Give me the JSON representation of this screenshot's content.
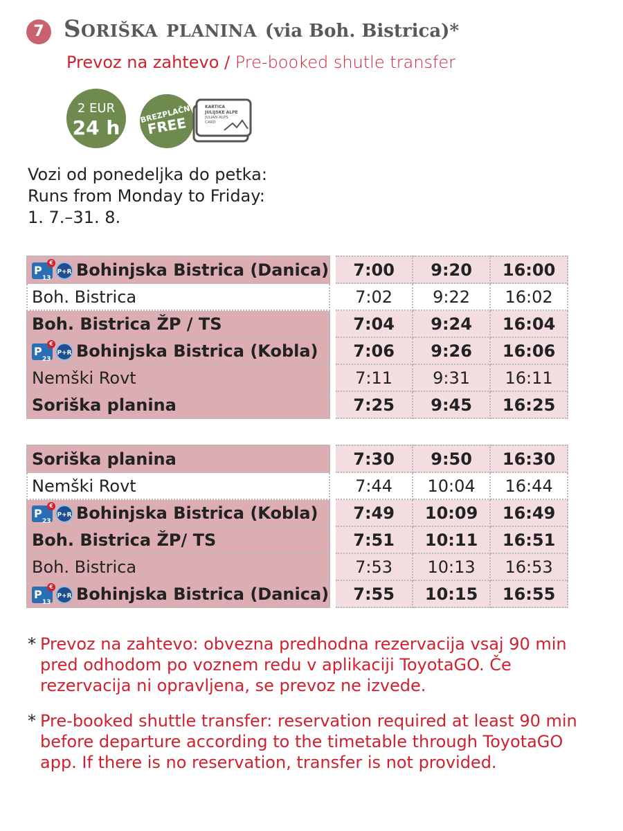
{
  "header": {
    "route_number": "7",
    "title": "Soriška planina",
    "title_via": "(via Boh. Bistrica)*",
    "subtitle_si": "Prevoz na zahtevo /",
    "subtitle_en": "Pre-booked shutle transfer"
  },
  "badges": {
    "price_line1": "2 EUR",
    "price_line2": "24 h",
    "free_line1": "BREZPLAČNO",
    "free_line2": "FREE",
    "card_line1": "KARTICA",
    "card_line2": "JULIJSKE ALPE",
    "card_line3": "JULIAN ALPS",
    "card_line4": "CARD"
  },
  "schedule_info": {
    "line_si": "Vozi od ponedeljka do petka:",
    "line_en": "Runs from Monday to Friday:",
    "dates": "1. 7.–31. 8."
  },
  "table_out": {
    "rows": [
      {
        "stop": "Bohinjska Bistrica (Danica)",
        "times": [
          "7:00",
          "9:20",
          "16:00"
        ],
        "icons": "p13"
      },
      {
        "stop": "Boh. Bistrica",
        "times": [
          "7:02",
          "9:22",
          "16:02"
        ],
        "icons": ""
      },
      {
        "stop": "Boh. Bistrica ŽP / TS",
        "times": [
          "7:04",
          "9:24",
          "16:04"
        ],
        "icons": ""
      },
      {
        "stop": "Bohinjska Bistrica (Kobla)",
        "times": [
          "7:06",
          "9:26",
          "16:06"
        ],
        "icons": "p23"
      },
      {
        "stop": "Nemški Rovt",
        "times": [
          "7:11",
          "9:31",
          "16:11"
        ],
        "icons": ""
      },
      {
        "stop": "Soriška planina",
        "times": [
          "7:25",
          "9:45",
          "16:25"
        ],
        "icons": ""
      }
    ]
  },
  "table_back": {
    "rows": [
      {
        "stop": "Soriška planina",
        "times": [
          "7:30",
          "9:50",
          "16:30"
        ],
        "icons": ""
      },
      {
        "stop": "Nemški Rovt",
        "times": [
          "7:44",
          "10:04",
          "16:44"
        ],
        "icons": ""
      },
      {
        "stop": "Bohinjska Bistrica (Kobla)",
        "times": [
          "7:49",
          "10:09",
          "16:49"
        ],
        "icons": "p23"
      },
      {
        "stop": "Boh. Bistrica ŽP/ TS",
        "times": [
          "7:51",
          "10:11",
          "16:51"
        ],
        "icons": ""
      },
      {
        "stop": "Boh. Bistrica",
        "times": [
          "7:53",
          "10:13",
          "16:53"
        ],
        "icons": ""
      },
      {
        "stop": "Bohinjska Bistrica (Danica)",
        "times": [
          "7:55",
          "10:15",
          "16:55"
        ],
        "icons": "p13"
      }
    ]
  },
  "icons": {
    "parking": "P",
    "euro": "€",
    "park_ride": "P+R"
  },
  "notes": {
    "star": "*",
    "si": "Prevoz na zahtevo: obvezna predhodna rezervacija vsaj 90 min pred odhodom po voznem redu v aplikaciji ToyotaGO. Če rezervacija ni opravljena, se prevoz ne izvede.",
    "en": "Pre-booked shuttle transfer: reservation required at least 90 min before departure according to the timetable through ToyotaGO app. If there is no reservation, transfer is not provided."
  },
  "colors": {
    "accent_red": "#d0212f",
    "badge_green": "#6e8a4f",
    "row_pink": "#dcaeb4",
    "time_pink": "#f3dde0",
    "route_badge": "#c9616f"
  }
}
